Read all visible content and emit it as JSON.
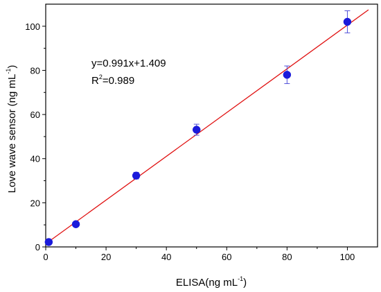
{
  "chart_data": {
    "type": "scatter",
    "xlabel": {
      "main": "ELISA(ng mL",
      "sup": "-1",
      "end": ")"
    },
    "ylabel": {
      "main": "Love wave sensor (ng mL",
      "sup": "-1",
      "end": ")"
    },
    "xlim": [
      0,
      110
    ],
    "ylim": [
      0,
      110
    ],
    "xticks": [
      0,
      20,
      40,
      60,
      80,
      100
    ],
    "yticks": [
      0,
      20,
      40,
      60,
      80,
      100
    ],
    "series": [
      {
        "x": [
          1,
          10,
          30,
          50,
          80,
          100
        ],
        "y": [
          2.2,
          10.3,
          32.3,
          53.1,
          78.0,
          102.0
        ],
        "err": [
          1.0,
          1.0,
          1.5,
          2.5,
          4.0,
          5.0
        ],
        "color": "#1a1adb",
        "errorbar_color": "#4f4fd8"
      }
    ],
    "fit": {
      "slope": 0.991,
      "intercept": 1.409,
      "color": "#e01010"
    },
    "annotations": {
      "equation": "y=0.991x+1.409",
      "r2": {
        "pre": "R",
        "sup": "2",
        "post": "=0.989"
      }
    }
  }
}
